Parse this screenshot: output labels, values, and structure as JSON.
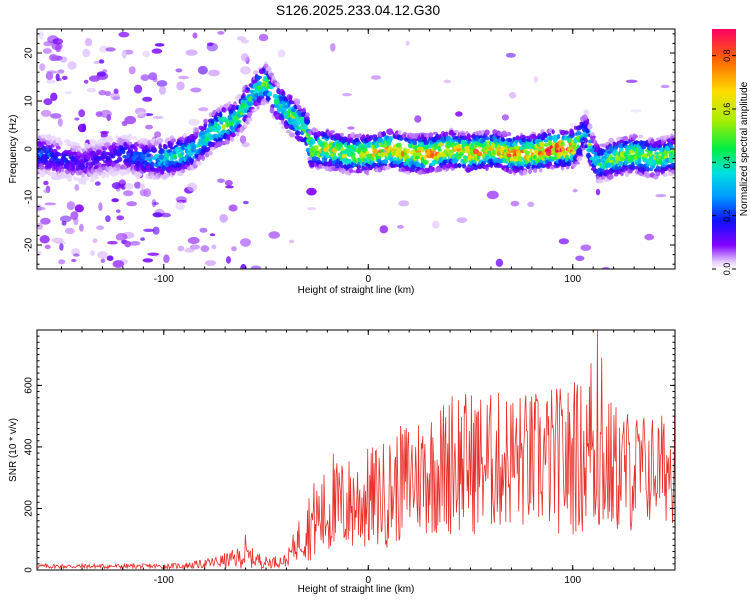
{
  "title": "S126.2025.233.04.12.G30",
  "chart_data": [
    {
      "type": "heatmap",
      "title": "S126.2025.233.04.12.G30",
      "xlabel": "Height of straight line (km)",
      "ylabel": "Frequency (Hz)",
      "xlim": [
        -162,
        150
      ],
      "ylim": [
        -25,
        25
      ],
      "xticks": [
        -100,
        0,
        100
      ],
      "xtick_labels": [
        "-100",
        "0",
        "100"
      ],
      "yticks": [
        -20,
        -10,
        0,
        10,
        20
      ],
      "ytick_labels": [
        "-20",
        "-10",
        "0",
        "10",
        "20"
      ],
      "colorbar": {
        "label": "Normalized spectral amplitude",
        "range": [
          0,
          0.9
        ],
        "ticks": [
          0,
          0.2,
          0.4,
          0.6,
          0.8
        ],
        "tick_labels": [
          "0.0",
          "0.2",
          "0.4",
          "0.6",
          "0.8"
        ]
      },
      "ridge": {
        "x": [
          -160,
          -150,
          -140,
          -130,
          -120,
          -110,
          -100,
          -90,
          -85,
          -80,
          -75,
          -70,
          -65,
          -60,
          -55,
          -50,
          -45,
          -40,
          -35,
          -30,
          -28,
          -20,
          -10,
          0,
          10,
          20,
          30,
          40,
          50,
          60,
          70,
          80,
          90,
          100,
          104,
          106,
          108,
          112,
          120,
          130,
          140,
          150
        ],
        "freq": [
          -1,
          -2,
          -3,
          -2,
          -1,
          -2,
          -2,
          -1,
          0,
          2,
          4,
          5,
          6,
          9,
          12,
          14,
          10,
          8,
          6,
          4,
          0,
          0,
          -1,
          -1,
          0,
          -1,
          -1,
          0,
          -1,
          0,
          -1,
          -1,
          0,
          0,
          2,
          4,
          1,
          -3,
          -2,
          -1,
          -2,
          -1
        ],
        "amp": [
          0.25,
          0.2,
          0.15,
          0.15,
          0.2,
          0.25,
          0.4,
          0.45,
          0.4,
          0.45,
          0.5,
          0.55,
          0.45,
          0.5,
          0.45,
          0.55,
          0.4,
          0.5,
          0.55,
          0.6,
          0.62,
          0.68,
          0.6,
          0.7,
          0.75,
          0.72,
          0.8,
          0.7,
          0.78,
          0.72,
          0.8,
          0.75,
          0.9,
          0.82,
          0.4,
          0.3,
          0.5,
          0.42,
          0.55,
          0.62,
          0.55,
          0.5
        ]
      }
    },
    {
      "type": "line",
      "xlabel": "Height of straight line (km)",
      "ylabel": "SNR (10 * v/v)",
      "xlim": [
        -162,
        150
      ],
      "ylim": [
        0,
        780
      ],
      "xticks": [
        -100,
        0,
        100
      ],
      "xtick_labels": [
        "-100",
        "0",
        "100"
      ],
      "yticks": [
        0,
        200,
        400,
        600
      ],
      "ytick_labels": [
        "0",
        "200",
        "400",
        "600"
      ],
      "color": "#e8302a",
      "envelope": {
        "x": [
          -162,
          -140,
          -120,
          -100,
          -90,
          -80,
          -70,
          -60,
          -50,
          -40,
          -35,
          -30,
          -25,
          -20,
          -15,
          -10,
          0,
          10,
          20,
          30,
          40,
          50,
          60,
          70,
          80,
          90,
          100,
          105,
          110,
          115,
          120,
          130,
          140,
          150
        ],
        "mean": [
          12,
          12,
          12,
          12,
          14,
          20,
          30,
          45,
          25,
          30,
          90,
          140,
          170,
          180,
          200,
          210,
          230,
          250,
          300,
          320,
          340,
          350,
          350,
          360,
          350,
          360,
          350,
          370,
          380,
          340,
          330,
          320,
          330,
          330
        ],
        "spread": [
          8,
          8,
          8,
          8,
          10,
          15,
          25,
          40,
          20,
          20,
          60,
          110,
          140,
          150,
          160,
          160,
          170,
          180,
          200,
          210,
          230,
          240,
          230,
          230,
          230,
          240,
          250,
          260,
          280,
          240,
          220,
          200,
          180,
          180
        ]
      },
      "peaks": [
        {
          "x": -60,
          "y": 115
        },
        {
          "x": -17,
          "y": 378
        },
        {
          "x": 41,
          "y": 565
        },
        {
          "x": 44,
          "y": 552
        },
        {
          "x": 101,
          "y": 610
        },
        {
          "x": 109,
          "y": 672
        },
        {
          "x": 112,
          "y": 780
        },
        {
          "x": 114,
          "y": 690
        },
        {
          "x": 150,
          "y": 520
        }
      ]
    }
  ]
}
